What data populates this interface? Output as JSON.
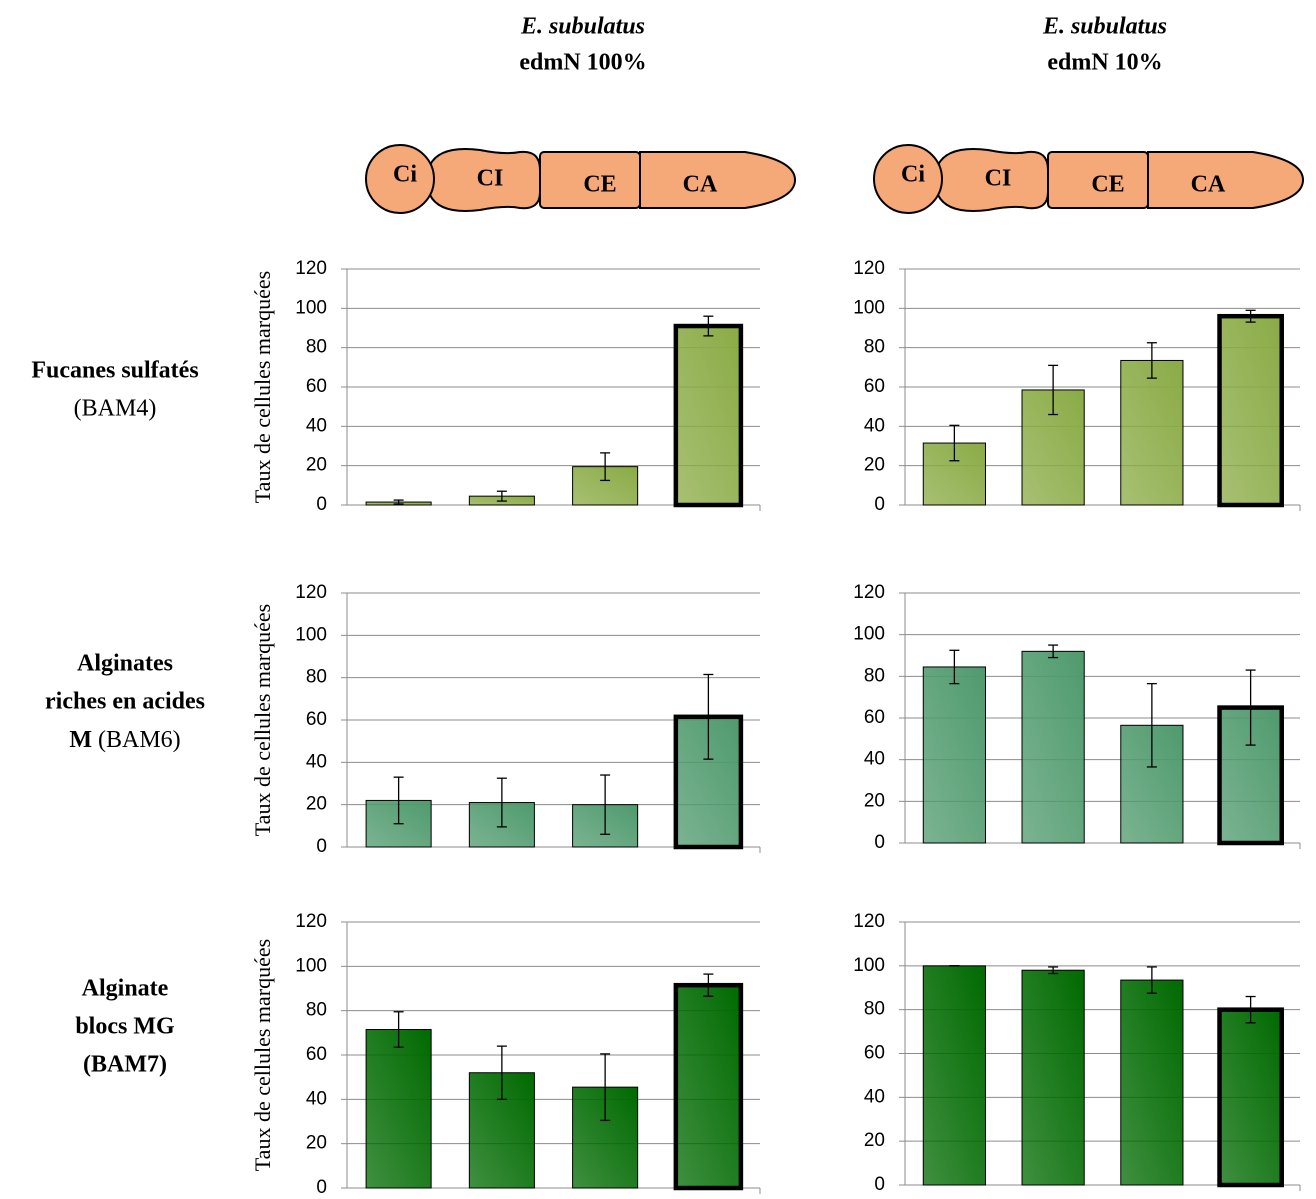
{
  "columns": [
    {
      "species": "E. subulatus",
      "condition": "edmN 100%",
      "cells": [
        "Ci",
        "CI",
        "CE",
        "CA"
      ]
    },
    {
      "species": "E. subulatus",
      "condition": "edmN 10%",
      "cells": [
        "Ci",
        "CI",
        "CE",
        "CA"
      ]
    }
  ],
  "rows": [
    {
      "label": [
        "Fucanes sulfatés"
      ],
      "antibody": "(BAM4)"
    },
    {
      "label": [
        "Alginates",
        "riches en acides",
        "M"
      ],
      "antibody": "(BAM6)"
    },
    {
      "label": [
        "Alginate",
        "blocs MG"
      ],
      "antibody": "(BAM7)"
    }
  ],
  "chart_data": [
    {
      "type": "bar",
      "y_label": "Taux de cellules marquées",
      "values": [
        1.5,
        4.5,
        19.5,
        91
      ],
      "errors": [
        1,
        2.5,
        7,
        5
      ],
      "color": "#8aab45",
      "ylim": [
        0,
        120
      ],
      "yticks": [
        0,
        20,
        40,
        60,
        80,
        100,
        120
      ],
      "grid": true
    },
    {
      "type": "bar",
      "values": [
        31.5,
        58.5,
        73.5,
        96
      ],
      "errors": [
        9,
        12.5,
        9,
        3
      ],
      "color": "#8aab45",
      "ylim": [
        0,
        120
      ],
      "yticks": [
        0,
        20,
        40,
        60,
        80,
        100,
        120
      ],
      "grid": true
    },
    {
      "type": "bar",
      "y_label": "Taux de cellules marquées",
      "values": [
        22,
        21,
        20,
        61.5
      ],
      "errors": [
        11,
        11.5,
        14,
        20
      ],
      "color": "#4f9a6d",
      "ylim": [
        0,
        120
      ],
      "yticks": [
        0,
        20,
        40,
        60,
        80,
        100,
        120
      ],
      "grid": true
    },
    {
      "type": "bar",
      "values": [
        84.5,
        92,
        56.5,
        65
      ],
      "errors": [
        8,
        3,
        20,
        18
      ],
      "color": "#4f9a6d",
      "ylim": [
        0,
        120
      ],
      "yticks": [
        0,
        20,
        40,
        60,
        80,
        100,
        120
      ],
      "grid": true
    },
    {
      "type": "bar",
      "y_label": "Taux de cellules marquées",
      "values": [
        71.5,
        52,
        45.5,
        91.5
      ],
      "errors": [
        8,
        12,
        15,
        5
      ],
      "color": "#006a00",
      "ylim": [
        0,
        120
      ],
      "yticks": [
        0,
        20,
        40,
        60,
        80,
        100,
        120
      ],
      "grid": true
    },
    {
      "type": "bar",
      "values": [
        100,
        98,
        93.5,
        80
      ],
      "errors": [
        0,
        1.5,
        6,
        6
      ],
      "color": "#006a00",
      "ylim": [
        0,
        120
      ],
      "yticks": [
        0,
        20,
        40,
        60,
        80,
        100,
        120
      ],
      "grid": true
    }
  ]
}
